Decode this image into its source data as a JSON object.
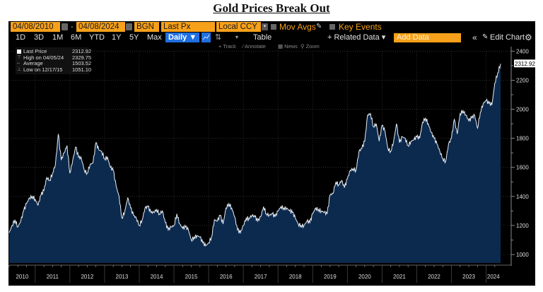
{
  "title": "Gold Prices Break Out",
  "toolbar": {
    "start_date": "04/08/2010",
    "separator": "-",
    "end_date": "04/08/2024",
    "source": "BGN",
    "field": "Last Px",
    "currency": "Local CCY",
    "mov_avgs": "Mov Avgs",
    "key_events": "Key Events",
    "periods": [
      "1D",
      "3D",
      "1M",
      "6M",
      "YTD",
      "1Y",
      "5Y",
      "Max"
    ],
    "frequency": "Daily ▼",
    "table": "Table",
    "related_data": "+ Related Data ▾",
    "add_data_placeholder": "Add Data",
    "collapse": "«",
    "edit_chart": "Edit Chart",
    "tools": [
      "Track",
      "Annotate",
      "News",
      "Zoom"
    ]
  },
  "legend": {
    "rows": [
      {
        "label": "Last Price",
        "value": "2312.92"
      },
      {
        "label": "High on 04/05/24",
        "value": "2329.75"
      },
      {
        "label": "Average",
        "value": "1503.52"
      },
      {
        "label": "Low on 12/17/15",
        "value": "1051.10"
      }
    ]
  },
  "colors": {
    "accent_orange": "#f7a11a",
    "accent_blue": "#1f6fe0",
    "area_fill": "#0c2a4e",
    "line": "#e8eef5",
    "background": "#000000"
  },
  "chart_data": {
    "type": "area",
    "title": "Gold Prices Break Out",
    "xlabel": "",
    "ylabel": "",
    "ylim": [
      900,
      2450
    ],
    "yticks": [
      1000,
      1200,
      1400,
      1600,
      1800,
      2000,
      2200,
      2400
    ],
    "xticks": [
      "2010",
      "2011",
      "2012",
      "2013",
      "2014",
      "2015",
      "2016",
      "2017",
      "2018",
      "2019",
      "2020",
      "2021",
      "2022",
      "2023",
      "2024"
    ],
    "grid": true,
    "last_value_label": "2312.92",
    "x_start": "2010-04",
    "x_end": "2024-04",
    "frequency": "monthly (approx.)",
    "series": [
      {
        "name": "Gold Last Price (BGN)",
        "values": [
          1150,
          1200,
          1240,
          1190,
          1230,
          1300,
          1350,
          1390,
          1400,
          1380,
          1340,
          1410,
          1440,
          1530,
          1510,
          1560,
          1620,
          1830,
          1650,
          1700,
          1750,
          1560,
          1650,
          1740,
          1670,
          1660,
          1580,
          1560,
          1620,
          1630,
          1770,
          1720,
          1710,
          1660,
          1670,
          1600,
          1580,
          1470,
          1400,
          1250,
          1300,
          1390,
          1320,
          1270,
          1250,
          1200,
          1240,
          1320,
          1330,
          1290,
          1290,
          1310,
          1280,
          1300,
          1220,
          1170,
          1190,
          1200,
          1280,
          1210,
          1180,
          1190,
          1170,
          1100,
          1120,
          1130,
          1120,
          1080,
          1060,
          1080,
          1120,
          1240,
          1230,
          1270,
          1210,
          1320,
          1350,
          1320,
          1260,
          1170,
          1150,
          1200,
          1250,
          1250,
          1270,
          1260,
          1230,
          1260,
          1330,
          1280,
          1270,
          1280,
          1260,
          1300,
          1330,
          1320,
          1320,
          1300,
          1290,
          1250,
          1210,
          1200,
          1200,
          1230,
          1220,
          1280,
          1320,
          1310,
          1300,
          1290,
          1280,
          1410,
          1420,
          1500,
          1480,
          1510,
          1460,
          1520,
          1580,
          1590,
          1580,
          1710,
          1730,
          1780,
          1960,
          1970,
          1880,
          1900,
          1780,
          1890,
          1850,
          1730,
          1710,
          1780,
          1900,
          1770,
          1810,
          1800,
          1750,
          1780,
          1790,
          1810,
          1800,
          1910,
          1940,
          1900,
          1840,
          1800,
          1760,
          1710,
          1660,
          1640,
          1760,
          1800,
          1930,
          1830,
          1970,
          1990,
          1960,
          1920,
          1940,
          1960,
          1870,
          1980,
          2040,
          2060,
          2040,
          2030,
          2180,
          2250,
          2312.92
        ]
      }
    ],
    "summary": {
      "last": 2312.92,
      "high": 2329.75,
      "high_date": "04/05/24",
      "average": 1503.52,
      "low": 1051.1,
      "low_date": "12/17/15"
    }
  }
}
